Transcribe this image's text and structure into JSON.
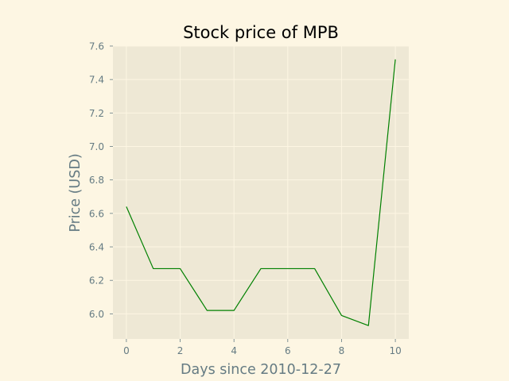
{
  "chart_data": {
    "type": "line",
    "title": "Stock price of MPB",
    "xlabel": "Days since 2010-12-27",
    "ylabel": "Price (USD)",
    "x": [
      0,
      1,
      2,
      3,
      4,
      5,
      6,
      7,
      8,
      9,
      10
    ],
    "series": [
      {
        "values": [
          6.64,
          6.27,
          6.27,
          6.02,
          6.02,
          6.27,
          6.27,
          6.27,
          5.99,
          5.93,
          7.52
        ]
      }
    ],
    "xlim": [
      -0.5,
      10.5
    ],
    "ylim": [
      5.85,
      7.6
    ],
    "xticks": [
      0,
      2,
      4,
      6,
      8,
      10
    ],
    "xtick_labels": [
      "0",
      "2",
      "4",
      "6",
      "8",
      "10"
    ],
    "yticks": [
      6.0,
      6.2,
      6.4,
      6.6,
      6.8,
      7.0,
      7.2,
      7.4,
      7.6
    ],
    "ytick_labels": [
      "6.0",
      "6.2",
      "6.4",
      "6.6",
      "6.8",
      "7.0",
      "7.2",
      "7.4",
      "7.6"
    ],
    "grid": true,
    "legend": "none",
    "colors": {
      "figure_background": "#fdf6e3",
      "plot_background": "#eee8d5",
      "grid": "#fdf6e3",
      "line": "#008000",
      "text": "#657b83",
      "title": "#000000"
    }
  }
}
